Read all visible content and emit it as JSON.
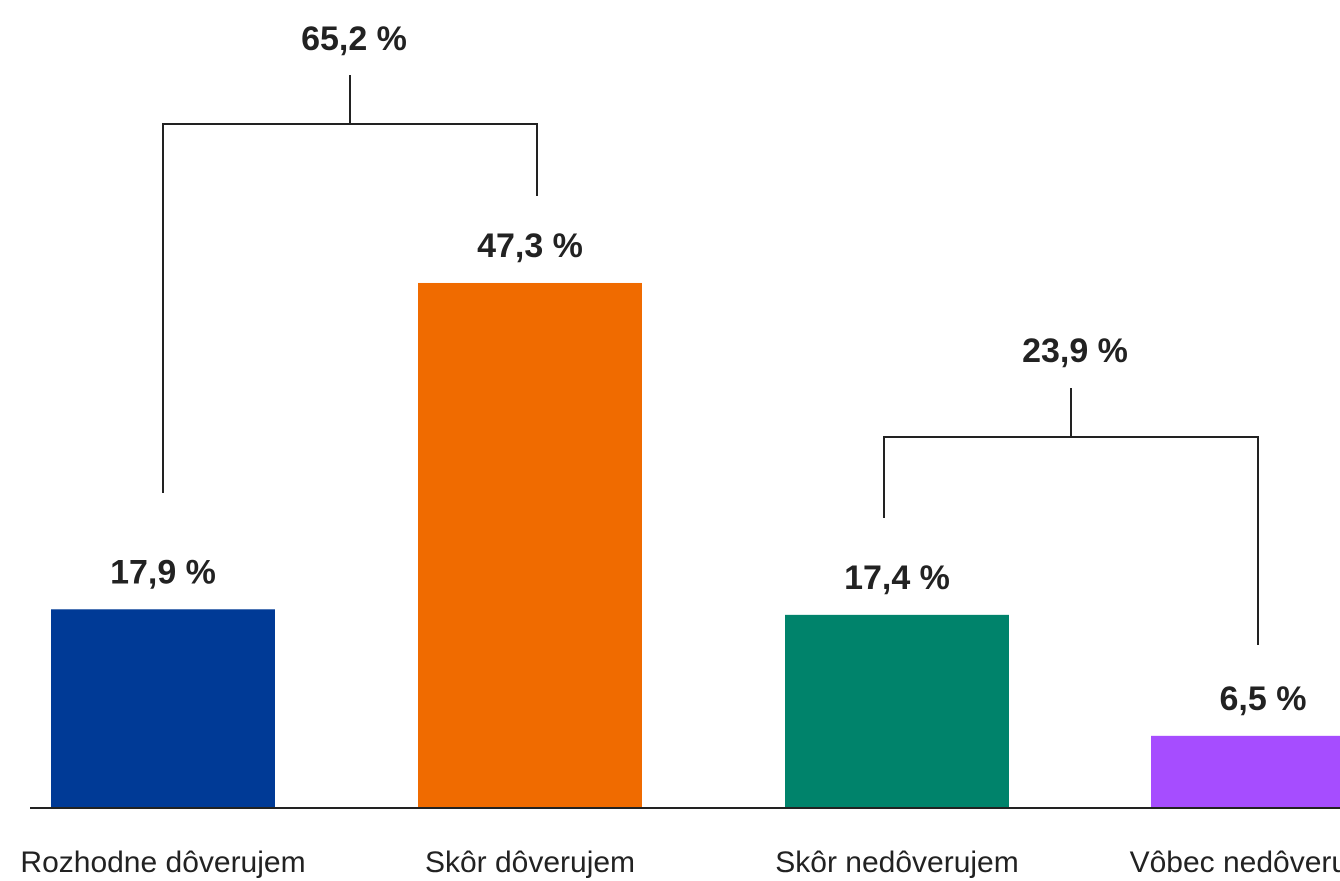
{
  "chart_data": {
    "type": "bar",
    "categories": [
      "Rozhodne dôverujem",
      "Skôr dôverujem",
      "Skôr nedôverujem",
      "Vôbec nedôverujem"
    ],
    "values": [
      17.9,
      47.3,
      17.4,
      6.5
    ],
    "value_labels": [
      "17,9 %",
      "47,3 %",
      "17,4 %",
      "6,5 %"
    ],
    "colors": [
      "#003a96",
      "#f06b00",
      "#00836b",
      "#a64dff"
    ],
    "groups": [
      {
        "label": "65,2 %",
        "value": 65.2,
        "members": [
          0,
          1
        ]
      },
      {
        "label": "23,9 %",
        "value": 23.9,
        "members": [
          2,
          3
        ]
      }
    ],
    "grid": false,
    "legend": "none",
    "title": "",
    "xlabel": "",
    "ylabel": ""
  }
}
